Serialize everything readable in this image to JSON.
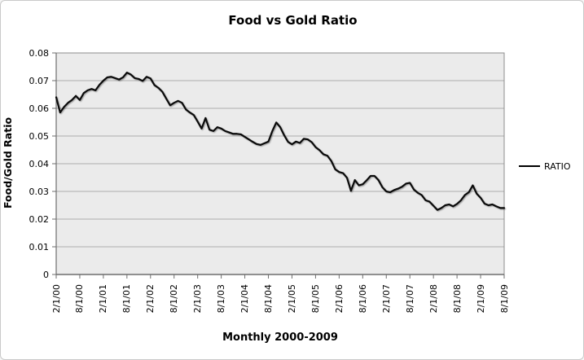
{
  "window": {
    "background": "#ffffff",
    "border_color": "#c9c9c9"
  },
  "chart": {
    "title": "Food vs Gold Ratio",
    "x_axis_title": "Monthly 2000-2009",
    "y_axis_title": "Food/Gold Ratio",
    "legend": {
      "label": "RATIO",
      "swatch": "line",
      "swatch_color": "#000000"
    },
    "colors": {
      "plot_background": "#ebebeb",
      "gridline": "#aeaeae",
      "plot_border": "#8c8c8c",
      "axis": "#6e6e6e",
      "series_line": "#0a0a0a"
    }
  },
  "chart_data": {
    "type": "line",
    "title": "Food vs Gold Ratio",
    "xlabel": "Monthly 2000-2009",
    "ylabel": "Food/Gold Ratio",
    "ylim": [
      0,
      0.08
    ],
    "y_tick_step": 0.01,
    "y_tick_labels": [
      "0",
      "0.01",
      "0.02",
      "0.03",
      "0.04",
      "0.05",
      "0.06",
      "0.07",
      "0.08"
    ],
    "x_start": "2/1/2000",
    "x_interval": "monthly",
    "x_ticks_every_months": 6,
    "x_tick_labels": [
      "2/1/00",
      "8/1/00",
      "2/1/01",
      "8/1/01",
      "2/1/02",
      "8/1/02",
      "2/1/03",
      "8/1/03",
      "2/1/04",
      "8/1/04",
      "2/1/05",
      "8/1/05",
      "2/1/06",
      "8/1/06",
      "2/1/07",
      "8/1/07",
      "2/1/08",
      "8/1/08",
      "2/1/09",
      "8/1/09"
    ],
    "grid": true,
    "legend_position": "right",
    "series": [
      {
        "name": "RATIO",
        "color": "#000000",
        "values": [
          0.064,
          0.0585,
          0.0605,
          0.062,
          0.063,
          0.0645,
          0.063,
          0.0655,
          0.0665,
          0.067,
          0.0665,
          0.0685,
          0.07,
          0.0712,
          0.0714,
          0.0709,
          0.0704,
          0.0712,
          0.0729,
          0.0722,
          0.0709,
          0.0706,
          0.0699,
          0.0714,
          0.0708,
          0.0684,
          0.0674,
          0.066,
          0.0635,
          0.0611,
          0.062,
          0.0627,
          0.062,
          0.0596,
          0.0585,
          0.0576,
          0.0552,
          0.0527,
          0.0565,
          0.0523,
          0.0518,
          0.0532,
          0.0527,
          0.0518,
          0.0513,
          0.0508,
          0.0508,
          0.0506,
          0.0497,
          0.0488,
          0.0479,
          0.0471,
          0.0468,
          0.0474,
          0.048,
          0.0518,
          0.0549,
          0.0532,
          0.0503,
          0.0479,
          0.047,
          0.048,
          0.0475,
          0.049,
          0.0488,
          0.0478,
          0.046,
          0.0449,
          0.0434,
          0.0429,
          0.041,
          0.038,
          0.037,
          0.0366,
          0.0349,
          0.0302,
          0.0341,
          0.0322,
          0.0326,
          0.034,
          0.0356,
          0.0356,
          0.0341,
          0.0315,
          0.03,
          0.0297,
          0.0305,
          0.031,
          0.0317,
          0.0328,
          0.0331,
          0.0307,
          0.0295,
          0.0287,
          0.0268,
          0.0263,
          0.0248,
          0.0233,
          0.024,
          0.025,
          0.0253,
          0.0246,
          0.0255,
          0.0268,
          0.0287,
          0.0297,
          0.0322,
          0.0292,
          0.0277,
          0.0256,
          0.025,
          0.0253,
          0.0246,
          0.024,
          0.024
        ]
      }
    ]
  }
}
